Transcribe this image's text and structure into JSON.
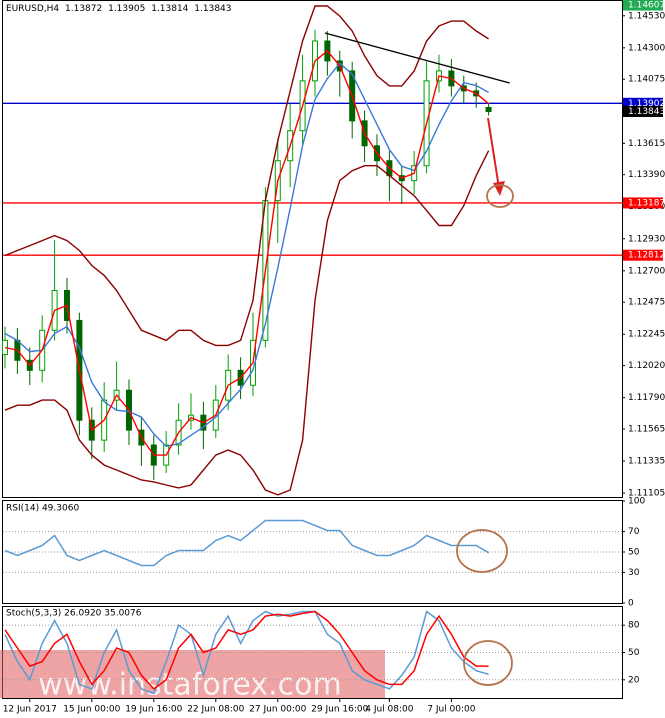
{
  "chart_data": [
    {
      "type": "candlestick",
      "title": "EURUSD,H4",
      "categories": [
        null,
        null,
        "12 Jun 2017",
        null,
        null,
        null,
        null,
        "15 Jun 00:00",
        null,
        null,
        null,
        null,
        "19 Jun 16:00",
        null,
        null,
        null,
        null,
        "22 Jun 08:00",
        null,
        null,
        null,
        null,
        "27 Jun 00:00",
        null,
        null,
        null,
        null,
        "29 Jun 16:00",
        null,
        null,
        null,
        "4 Jul 08:00",
        null,
        null,
        null,
        null,
        "7 Jul 00:00",
        null,
        null,
        null
      ],
      "open": [
        1.121,
        1.12201,
        1.12058,
        1.11986,
        1.12273,
        1.12559,
        1.12344,
        1.11628,
        1.11485,
        1.11772,
        1.11843,
        1.11557,
        1.1145,
        1.11306,
        1.1145,
        1.11628,
        1.11664,
        1.11557,
        1.11772,
        1.11986,
        1.11879,
        1.12201,
        1.13204,
        1.1349,
        1.13705,
        1.14063,
        1.14349,
        1.14206,
        1.14134,
        1.13776,
        1.13597,
        1.1349,
        1.13383,
        1.13347,
        1.13454,
        1.14063,
        1.14134,
        1.14027,
        1.13991,
        1.13872
      ],
      "high": [
        1.123,
        1.1229,
        1.1215,
        1.1238,
        1.1292,
        1.1265,
        1.124,
        1.1172,
        1.119,
        1.1205,
        1.1192,
        1.1165,
        1.1152,
        1.1155,
        1.1175,
        1.1182,
        1.1176,
        1.1188,
        1.121,
        1.1208,
        1.124,
        1.133,
        1.1365,
        1.139,
        1.1425,
        1.1443,
        1.1442,
        1.1428,
        1.142,
        1.1385,
        1.1368,
        1.1356,
        1.1345,
        1.1356,
        1.142,
        1.1425,
        1.1422,
        1.141,
        1.1405,
        1.13905
      ],
      "low": [
        1.12,
        1.1196,
        1.1188,
        1.119,
        1.122,
        1.1225,
        1.1152,
        1.1135,
        1.114,
        1.117,
        1.1145,
        1.113,
        1.112,
        1.1125,
        1.1138,
        1.1156,
        1.1142,
        1.115,
        1.117,
        1.1178,
        1.118,
        1.1215,
        1.129,
        1.133,
        1.136,
        1.1395,
        1.141,
        1.1395,
        1.1365,
        1.1348,
        1.1338,
        1.132,
        1.1318,
        1.1325,
        1.134,
        1.1398,
        1.1395,
        1.139,
        1.1387,
        1.13814
      ],
      "close": [
        1.12201,
        1.12058,
        1.11986,
        1.12273,
        1.12559,
        1.12344,
        1.11628,
        1.11485,
        1.11772,
        1.11843,
        1.11557,
        1.1145,
        1.11306,
        1.1145,
        1.11628,
        1.11664,
        1.11557,
        1.11772,
        1.11986,
        1.11879,
        1.12201,
        1.13204,
        1.1349,
        1.13705,
        1.14063,
        1.14349,
        1.14206,
        1.14134,
        1.13776,
        1.13597,
        1.1349,
        1.13383,
        1.13347,
        1.13454,
        1.14063,
        1.14134,
        1.14027,
        1.13991,
        1.13955,
        1.13843
      ],
      "up_color": "#00a000",
      "down_color": "#006400",
      "overlays": [
        {
          "color": "#8b0000",
          "values": [
            1.1281,
            1.12846,
            1.12881,
            1.12917,
            1.12953,
            1.12917,
            1.12846,
            1.12738,
            1.12667,
            1.12559,
            1.12416,
            1.12273,
            1.12237,
            1.12201,
            1.12273,
            1.12273,
            1.12201,
            1.12165,
            1.12165,
            1.12201,
            1.12488,
            1.13204,
            1.13633,
            1.13991,
            1.14349,
            1.146,
            1.146,
            1.14528,
            1.14421,
            1.14242,
            1.14099,
            1.14027,
            1.14027,
            1.14134,
            1.14349,
            1.14457,
            1.14492,
            1.14492,
            1.14421,
            1.14364
          ]
        },
        {
          "color": "#8b0000",
          "values": [
            1.117,
            1.11736,
            1.11736,
            1.11772,
            1.11772,
            1.117,
            1.11485,
            1.11378,
            1.11306,
            1.11271,
            1.11235,
            1.11199,
            1.11185,
            1.11163,
            1.11142,
            1.11163,
            1.11271,
            1.11378,
            1.11414,
            1.11378,
            1.11271,
            1.11127,
            1.11092,
            1.11127,
            1.11485,
            1.12488,
            1.13061,
            1.13347,
            1.13418,
            1.13454,
            1.13454,
            1.13383,
            1.13311,
            1.13239,
            1.13132,
            1.13025,
            1.13025,
            1.13168,
            1.13383,
            1.13562
          ]
        },
        {
          "color": "#3c78d8",
          "values": [
            1.1225,
            1.122,
            1.1212,
            1.1213,
            1.1225,
            1.123,
            1.1215,
            1.119,
            1.1176,
            1.117,
            1.1169,
            1.1165,
            1.1153,
            1.1144,
            1.1146,
            1.1152,
            1.1158,
            1.1165,
            1.1175,
            1.1185,
            1.1199,
            1.1232,
            1.1272,
            1.1315,
            1.136,
            1.1393,
            1.1408,
            1.1419,
            1.1411,
            1.1393,
            1.1375,
            1.1357,
            1.1345,
            1.1342,
            1.1356,
            1.1375,
            1.1392,
            1.1405,
            1.1403,
            1.1398
          ]
        },
        {
          "color": "#ff0000",
          "values": [
            1.1215,
            1.1213,
            1.12022,
            1.1213,
            1.12416,
            1.12452,
            1.11986,
            1.11557,
            1.11628,
            1.11808,
            1.117,
            1.11504,
            1.11378,
            1.11378,
            1.11539,
            1.11646,
            1.1161,
            1.11664,
            1.11879,
            1.11932,
            1.1204,
            1.12702,
            1.13347,
            1.13598,
            1.13884,
            1.14206,
            1.14278,
            1.1417,
            1.13955,
            1.13687,
            1.13544,
            1.13437,
            1.13365,
            1.134,
            1.13758,
            1.14098,
            1.1408,
            1.14009,
            1.13973,
            1.13899
          ]
        }
      ],
      "levels": [
        {
          "value": 1.13902,
          "color": "#0000cc"
        },
        {
          "value": 1.13187,
          "color": "#ff0000"
        },
        {
          "value": 1.12812,
          "color": "#ff0000"
        }
      ],
      "top_label": {
        "value": 1.14607,
        "color": "#22aa55"
      },
      "trendline": {
        "x": [
          25.8,
          40.7
        ],
        "y": [
          1.14406,
          1.14048
        ],
        "color": "#000000"
      },
      "xlim": [
        -0.16,
        49.76
      ],
      "ylim": [
        1.11077,
        1.14636
      ],
      "yticks": [
        {
          "value": 1.1453,
          "label": "1.14530"
        },
        {
          "value": 1.143,
          "label": "1.14300"
        },
        1.14075,
        1.13615,
        {
          "value": 1.1339,
          "label": "1.13390"
        },
        {
          "value": 1.1316,
          "label": "1.13160"
        },
        {
          "value": 1.1293,
          "label": "1.12930"
        },
        {
          "value": 1.127,
          "label": "1.12700"
        },
        1.12475,
        1.12245,
        {
          "value": 1.1202,
          "label": "1.12020"
        },
        {
          "value": 1.1179,
          "label": "1.11790"
        },
        1.11565,
        1.11335,
        1.11105
      ]
    },
    {
      "type": "line",
      "title": "RSI(14) 49.3060",
      "color": "#5b9bd5",
      "values": [
        51.5,
        46.6,
        51.5,
        56.4,
        66.2,
        46.6,
        41.7,
        46.6,
        51.5,
        46.6,
        41.7,
        36.8,
        36.8,
        46.6,
        51.5,
        51.5,
        51.5,
        61.3,
        66.2,
        61.3,
        71.1,
        80.9,
        80.9,
        80.9,
        80.9,
        76.0,
        71.1,
        71.1,
        56.4,
        51.5,
        46.6,
        46.6,
        51.5,
        56.4,
        66.2,
        61.3,
        56.4,
        56.4,
        56.4,
        49.306
      ],
      "xlim": [
        -0.16,
        49.76
      ],
      "ylim": [
        0,
        100
      ],
      "yticks": [
        100,
        70,
        50,
        30,
        0
      ]
    },
    {
      "type": "line",
      "title": "Stoch(5,3,3) 26.0920 35.0076",
      "series": [
        {
          "color": "#5b9bd5",
          "values": [
            70,
            40,
            20,
            60,
            85,
            60,
            15,
            10,
            50,
            75,
            30,
            10,
            5,
            40,
            80,
            70,
            25,
            70,
            90,
            60,
            85,
            95,
            90,
            92,
            95,
            95,
            70,
            60,
            30,
            20,
            15,
            10,
            25,
            45,
            95,
            85,
            55,
            40,
            30,
            26.092
          ]
        },
        {
          "color": "#ff0000",
          "values": [
            75,
            55,
            35,
            40,
            60,
            70,
            40,
            15,
            30,
            55,
            50,
            25,
            10,
            20,
            55,
            70,
            50,
            55,
            75,
            70,
            75,
            90,
            92,
            90,
            93,
            95,
            85,
            70,
            50,
            30,
            20,
            15,
            15,
            30,
            70,
            90,
            70,
            45,
            35,
            35.0076
          ]
        }
      ],
      "xlim": [
        -0.16,
        49.76
      ],
      "ylim": [
        0,
        100
      ],
      "yticks": [
        80,
        50,
        20
      ]
    }
  ],
  "watermark": "www.instaforex.com"
}
